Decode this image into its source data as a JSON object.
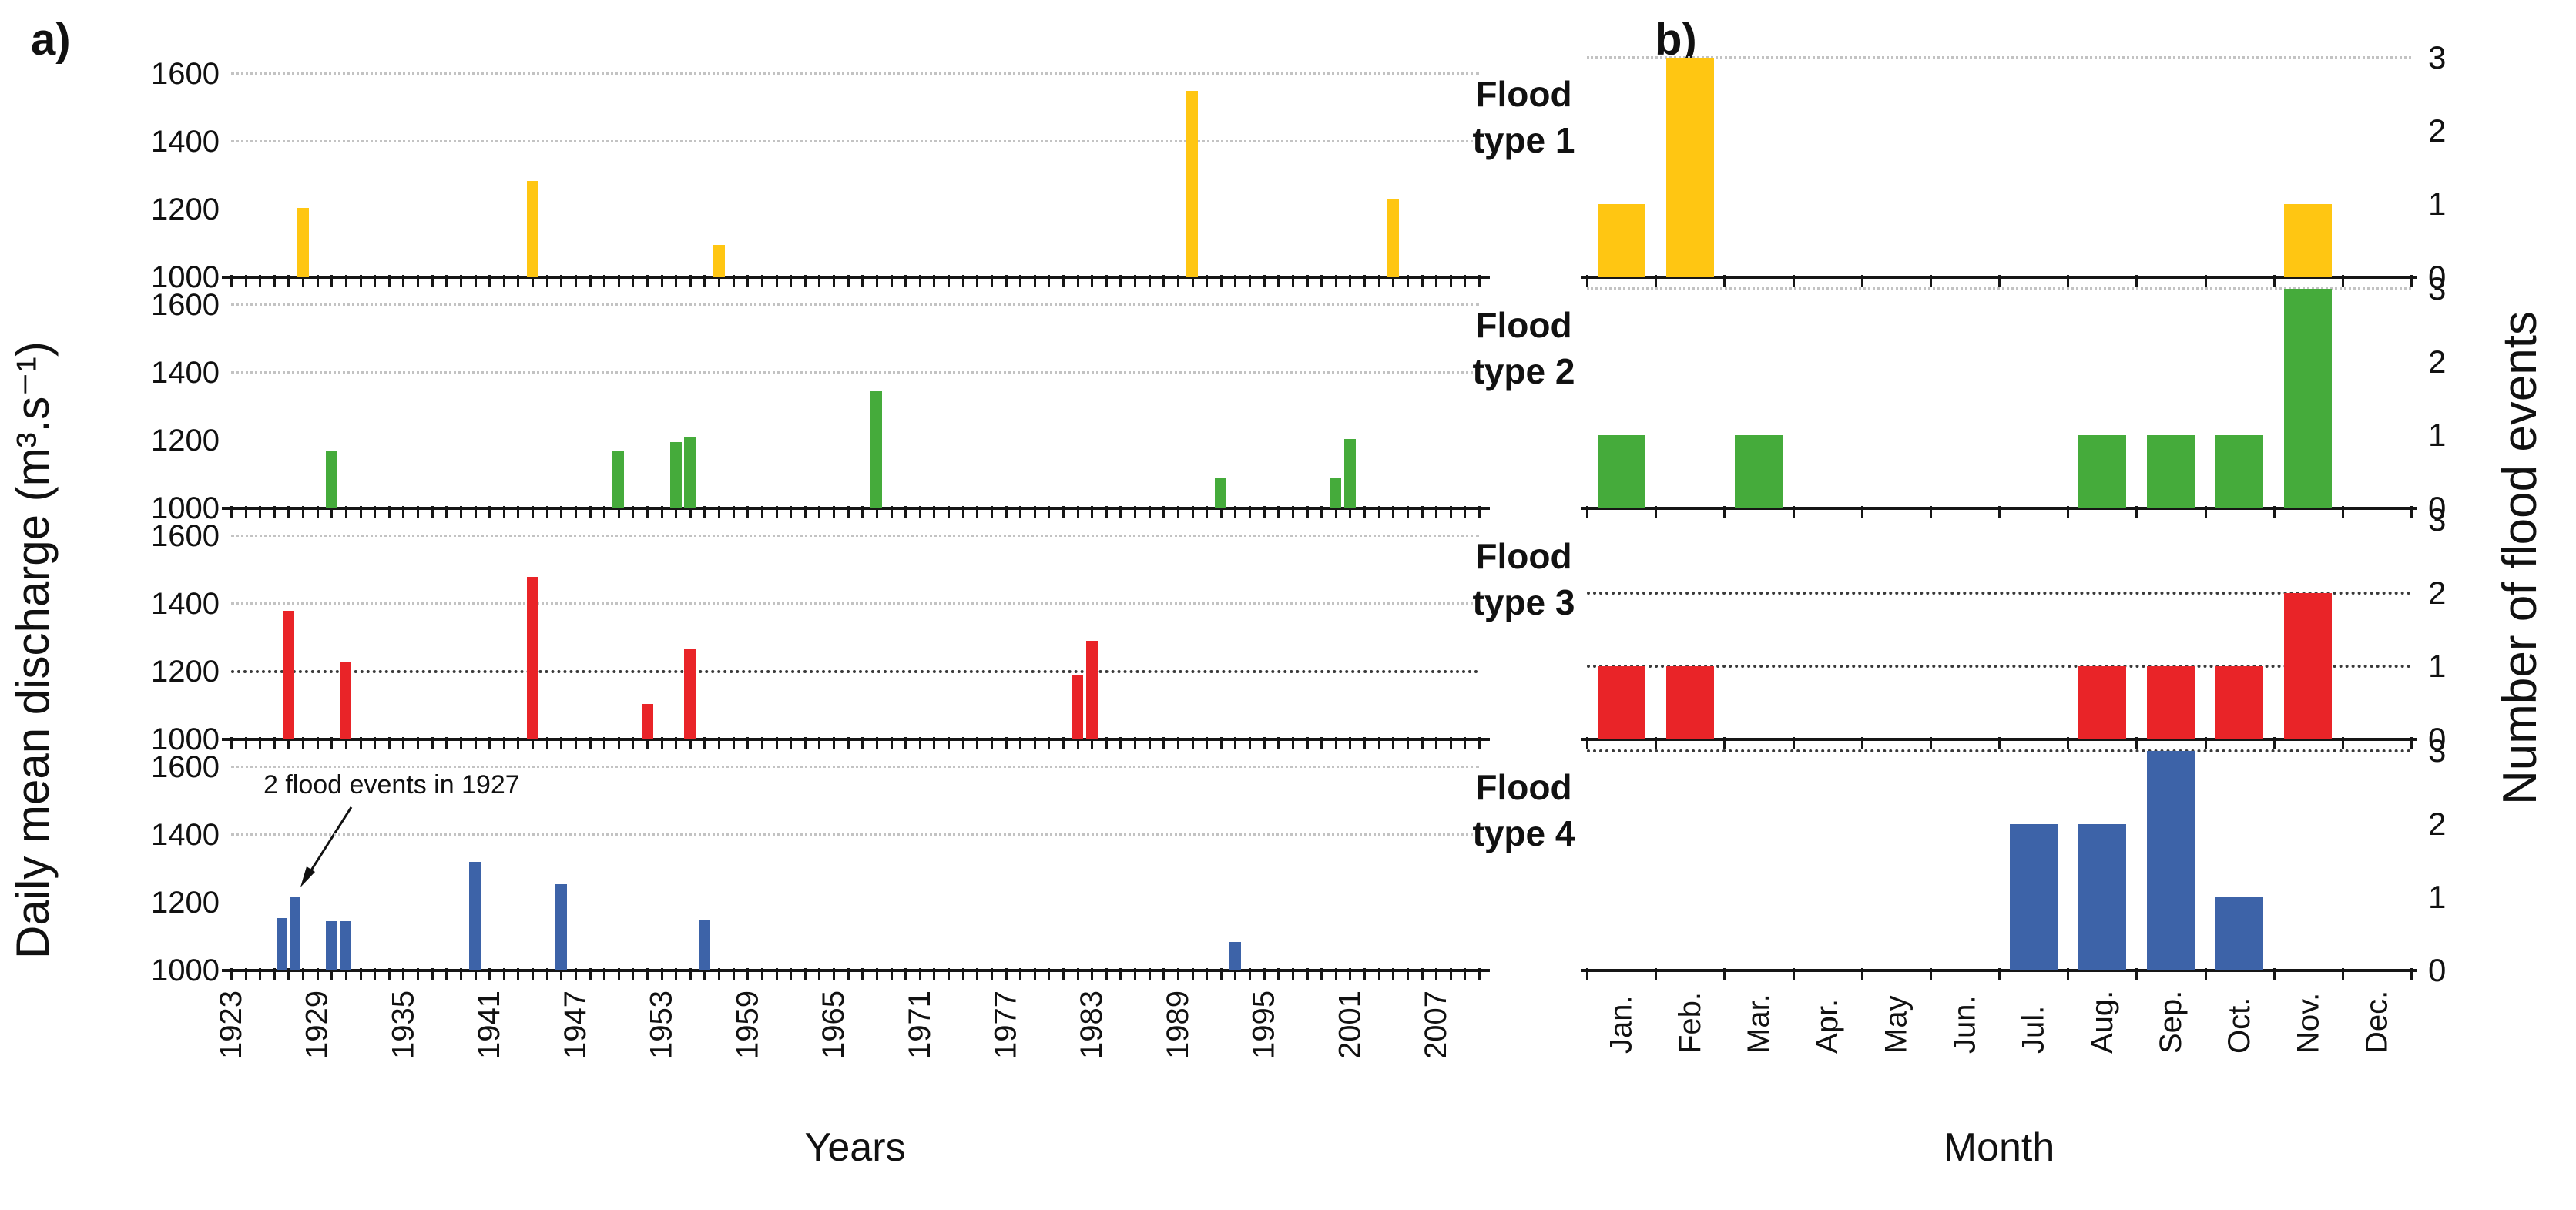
{
  "panel_a_tag": "a)",
  "panel_b_tag": "b)",
  "left_axis": {
    "ylabel": "Daily mean discharge (m³.s⁻¹)",
    "xlabel": "Years",
    "yticks": [
      1000,
      1200,
      1400,
      1600
    ],
    "year_start": 1923,
    "year_end": 2010,
    "year_label_start": 1923,
    "year_label_step": 6,
    "year_label_end": 2007
  },
  "right_axis": {
    "ylabel": "Number of flood events",
    "xlabel": "Month",
    "yticks": [
      0,
      1,
      2,
      3
    ],
    "months": [
      "Jan.",
      "Feb.",
      "Mar.",
      "Apr.",
      "May",
      "Jun.",
      "Jul.",
      "Aug.",
      "Sep.",
      "Oct.",
      "Nov.",
      "Dec."
    ]
  },
  "annotation": {
    "text": "2 flood events in 1927"
  },
  "chart_data": [
    {
      "type": "bar",
      "name": "Flood type 1",
      "label_lines": [
        "Flood",
        "type 1"
      ],
      "color": "#FFC612",
      "discharge_events": [
        {
          "year": 1928,
          "value": 1205
        },
        {
          "year": 1944,
          "value": 1285
        },
        {
          "year": 1957,
          "value": 1095
        },
        {
          "year": 1990,
          "value": 1550
        },
        {
          "year": 2004,
          "value": 1230
        }
      ],
      "monthly_counts": [
        1,
        3,
        0,
        0,
        0,
        0,
        0,
        0,
        0,
        0,
        1,
        0
      ],
      "a_gridlines": [
        {
          "value": 1400,
          "style": "light"
        },
        {
          "value": 1600,
          "style": "light"
        }
      ],
      "b_gridlines": [
        {
          "value": 3,
          "style": "light"
        }
      ]
    },
    {
      "type": "bar",
      "name": "Flood type 2",
      "label_lines": [
        "Flood",
        "type 2"
      ],
      "color": "#45AB3B",
      "discharge_events": [
        {
          "year": 1930,
          "value": 1170
        },
        {
          "year": 1950,
          "value": 1170
        },
        {
          "year": 1954,
          "value": 1195
        },
        {
          "year": 1955,
          "value": 1210
        },
        {
          "year": 1968,
          "value": 1345
        },
        {
          "year": 1992,
          "value": 1090
        },
        {
          "year": 2000,
          "value": 1090
        },
        {
          "year": 2001,
          "value": 1205
        }
      ],
      "monthly_counts": [
        1,
        0,
        1,
        0,
        0,
        0,
        0,
        1,
        1,
        1,
        3,
        0
      ],
      "a_gridlines": [
        {
          "value": 1400,
          "style": "light"
        },
        {
          "value": 1600,
          "style": "light"
        }
      ],
      "b_gridlines": [
        {
          "value": 3,
          "style": "light"
        }
      ]
    },
    {
      "type": "bar",
      "name": "Flood type 3",
      "label_lines": [
        "Flood",
        "type 3"
      ],
      "color": "#E92428",
      "discharge_events": [
        {
          "year": 1927,
          "value": 1380
        },
        {
          "year": 1931,
          "value": 1230
        },
        {
          "year": 1944,
          "value": 1480
        },
        {
          "year": 1952,
          "value": 1105
        },
        {
          "year": 1955,
          "value": 1265
        },
        {
          "year": 1982,
          "value": 1190
        },
        {
          "year": 1983,
          "value": 1290
        }
      ],
      "monthly_counts": [
        1,
        1,
        0,
        0,
        0,
        0,
        0,
        1,
        1,
        1,
        2,
        0
      ],
      "a_gridlines": [
        {
          "value": 1400,
          "style": "light"
        },
        {
          "value": 1600,
          "style": "light"
        },
        {
          "value": 1200,
          "style": "dark"
        }
      ],
      "b_gridlines": [
        {
          "value": 1,
          "style": "dark"
        },
        {
          "value": 2,
          "style": "dark"
        }
      ]
    },
    {
      "type": "bar",
      "name": "Flood type 4",
      "label_lines": [
        "Flood",
        "type 4"
      ],
      "color": "#3D63A8",
      "discharge_events": [
        {
          "year": 1927,
          "value": 1155
        },
        {
          "year": 1927,
          "value": 1215
        },
        {
          "year": 1930,
          "value": 1145
        },
        {
          "year": 1931,
          "value": 1145
        },
        {
          "year": 1940,
          "value": 1320
        },
        {
          "year": 1946,
          "value": 1255
        },
        {
          "year": 1956,
          "value": 1150
        },
        {
          "year": 1993,
          "value": 1085
        }
      ],
      "monthly_counts": [
        0,
        0,
        0,
        0,
        0,
        0,
        2,
        2,
        3,
        1,
        0,
        0
      ],
      "a_gridlines": [
        {
          "value": 1400,
          "style": "light"
        },
        {
          "value": 1600,
          "style": "light"
        }
      ],
      "b_gridlines": [
        {
          "value": 3,
          "style": "dark"
        }
      ]
    }
  ]
}
